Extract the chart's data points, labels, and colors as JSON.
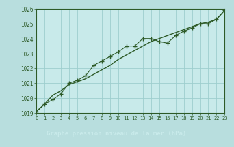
{
  "title": "Graphe pression niveau de la mer (hPa)",
  "bg_color": "#b8dede",
  "plot_bg_color": "#c8eaea",
  "grid_color": "#9ecece",
  "line_color": "#2d5a27",
  "bar_bg_color": "#2d5a27",
  "bar_text_color": "#c8eaea",
  "xlim": [
    0,
    23
  ],
  "ylim": [
    1019,
    1026
  ],
  "yticks": [
    1019,
    1020,
    1021,
    1022,
    1023,
    1024,
    1025,
    1026
  ],
  "xticks": [
    0,
    1,
    2,
    3,
    4,
    5,
    6,
    7,
    8,
    9,
    10,
    11,
    12,
    13,
    14,
    15,
    16,
    17,
    18,
    19,
    20,
    21,
    22,
    23
  ],
  "series1_x": [
    0,
    1,
    2,
    3,
    4,
    5,
    6,
    7,
    8,
    9,
    10,
    11,
    12,
    13,
    14,
    15,
    16,
    17,
    18,
    19,
    20,
    21,
    22,
    23
  ],
  "series1_y": [
    1019.1,
    1019.6,
    1019.9,
    1020.3,
    1021.0,
    1021.2,
    1021.5,
    1022.2,
    1022.5,
    1022.8,
    1023.1,
    1023.5,
    1023.5,
    1024.0,
    1024.0,
    1023.8,
    1023.7,
    1024.2,
    1024.5,
    1024.7,
    1025.0,
    1025.0,
    1025.3,
    1025.9
  ],
  "series2_x": [
    0,
    1,
    2,
    3,
    4,
    5,
    6,
    7,
    8,
    9,
    10,
    11,
    12,
    13,
    14,
    15,
    16,
    17,
    18,
    19,
    20,
    21,
    22,
    23
  ],
  "series2_y": [
    1019.1,
    1019.6,
    1020.2,
    1020.5,
    1020.9,
    1021.1,
    1021.3,
    1021.6,
    1021.9,
    1022.2,
    1022.6,
    1022.9,
    1023.2,
    1023.5,
    1023.8,
    1024.0,
    1024.2,
    1024.4,
    1024.6,
    1024.8,
    1025.0,
    1025.1,
    1025.3,
    1025.9
  ]
}
